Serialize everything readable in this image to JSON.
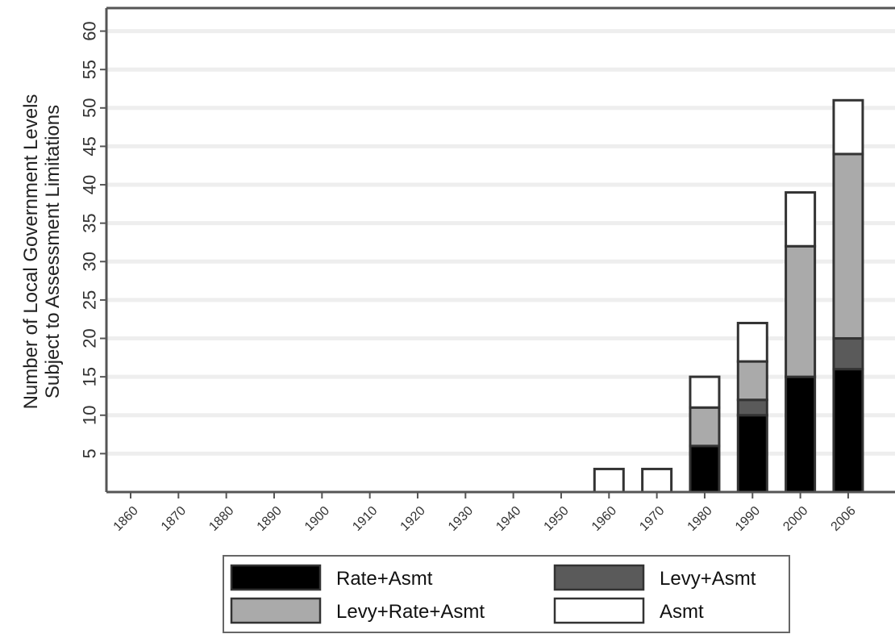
{
  "chart_data": {
    "type": "bar",
    "stacked": true,
    "title": "",
    "ylabel_lines": [
      "Number of Local Government Levels",
      "Subject to Assessment Limitations"
    ],
    "xlabel": "",
    "categories": [
      "1860",
      "1870",
      "1880",
      "1890",
      "1900",
      "1910",
      "1920",
      "1930",
      "1940",
      "1950",
      "1960",
      "1970",
      "1980",
      "1990",
      "2000",
      "2006"
    ],
    "yticks": [
      5,
      10,
      15,
      20,
      25,
      30,
      35,
      40,
      45,
      50,
      55,
      60
    ],
    "ylim": [
      0,
      63
    ],
    "grid": true,
    "legend_position": "bottom",
    "series": [
      {
        "name": "Rate+Asmt",
        "color": "#000000",
        "values": [
          0,
          0,
          0,
          0,
          0,
          0,
          0,
          0,
          0,
          0,
          0,
          0,
          6,
          10,
          15,
          16
        ]
      },
      {
        "name": "Levy+Asmt",
        "color": "#5a5a5a",
        "values": [
          0,
          0,
          0,
          0,
          0,
          0,
          0,
          0,
          0,
          0,
          0,
          0,
          0,
          2,
          0,
          4
        ]
      },
      {
        "name": "Levy+Rate+Asmt",
        "color": "#aaaaaa",
        "values": [
          0,
          0,
          0,
          0,
          0,
          0,
          0,
          0,
          0,
          0,
          0,
          0,
          5,
          5,
          17,
          24
        ]
      },
      {
        "name": "Asmt",
        "color": "#ffffff",
        "values": [
          0,
          0,
          0,
          0,
          0,
          0,
          0,
          0,
          0,
          0,
          3,
          3,
          4,
          5,
          7,
          7
        ]
      }
    ],
    "legend_order": [
      "Rate+Asmt",
      "Levy+Asmt",
      "Levy+Rate+Asmt",
      "Asmt"
    ]
  }
}
